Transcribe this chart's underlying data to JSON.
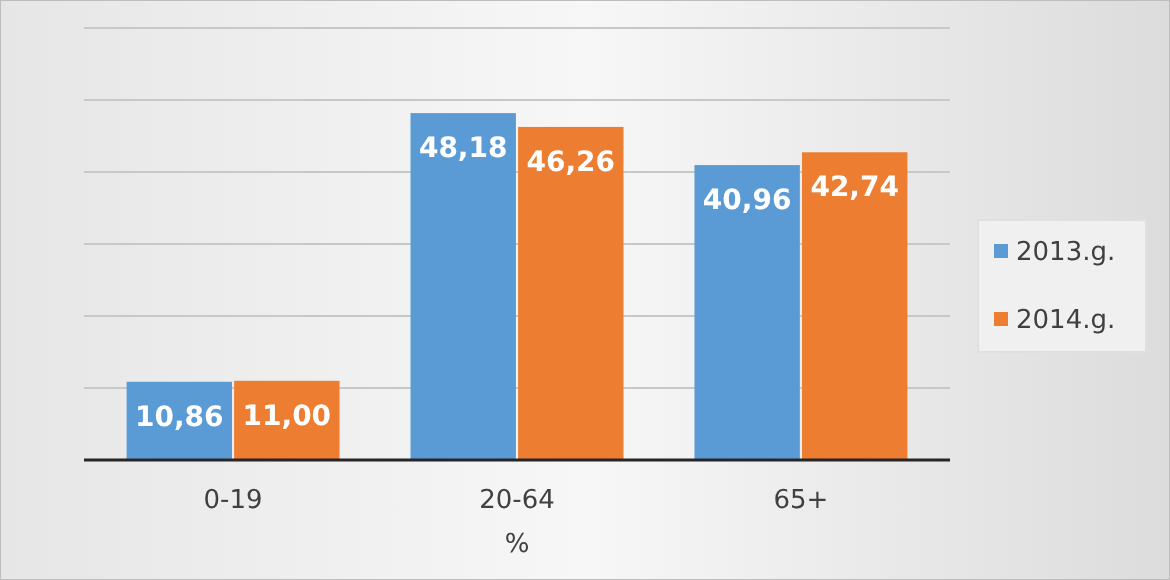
{
  "chart_data": {
    "type": "bar",
    "xlabel": "%",
    "categories": [
      "0-19",
      "20-64",
      "65+"
    ],
    "series": [
      {
        "name": "2013.g.",
        "color": "#5b9bd5",
        "values": [
          10.86,
          48.18,
          40.96
        ],
        "value_labels": [
          "10,86",
          "48,18",
          "40,96"
        ]
      },
      {
        "name": "2014.g.",
        "color": "#ed7d31",
        "values": [
          11.0,
          46.26,
          42.74
        ],
        "value_labels": [
          "11,00",
          "46,26",
          "42,74"
        ]
      }
    ],
    "ylim": [
      0,
      60
    ],
    "yticks": [
      {
        "value": 0,
        "label": null
      },
      {
        "value": 10,
        "label": null
      },
      {
        "value": 20,
        "label": null
      },
      {
        "value": 30,
        "label": null
      },
      {
        "value": 40,
        "label": null
      },
      {
        "value": 50,
        "label": null
      },
      {
        "value": 60,
        "label": null
      }
    ],
    "grid": "y",
    "tick_labels": "x",
    "legend": "right"
  }
}
